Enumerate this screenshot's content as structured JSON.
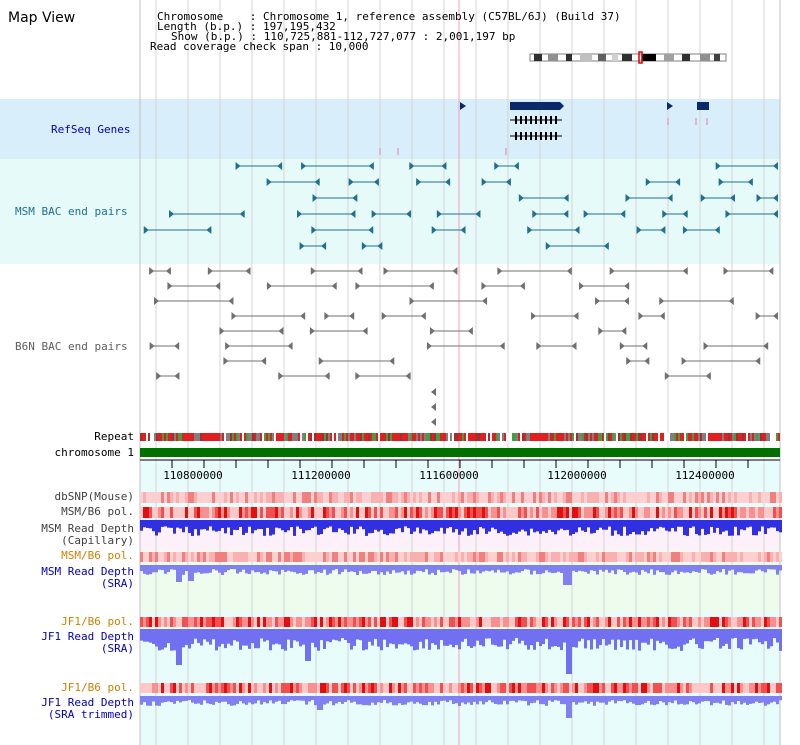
{
  "app": {
    "title": "Map View"
  },
  "info": {
    "chromosome": "Chromosome    : Chromosome 1, reference assembly (C57BL/6J) (Build 37)",
    "length": "Length (b.p.) : 197,195,432",
    "show": "Show (b.p.) : 110,725,881-112,727,077 : 2,001,197 bp",
    "span": "Read coverage check span : 10,000"
  },
  "colors": {
    "refseq_bg": "#d8eefa",
    "msm_bac_bg": "#e6fafa",
    "cyan_bg": "#e8fcfc",
    "pink_bg": "#fcf0fa",
    "green_bg": "#eefcee",
    "chromosome_bar": "#007000",
    "label_blue": "#0000c0",
    "label_teal": "#207090",
    "label_orange": "#d08000",
    "label_gray": "#606060"
  },
  "tracks": {
    "refseq": "RefSeq Genes",
    "msm_bac": "MSM BAC end pairs",
    "b6n_bac": "B6N BAC end pairs",
    "repeat": "Repeat",
    "chromosome": "chromosome 1",
    "dbsnp": "dbSNP(Mouse)",
    "msm_b6_pol": "MSM/B6 pol.",
    "msm_read_depth_cap_1": "MSM Read Depth",
    "msm_read_depth_cap_2": "(Capillary)",
    "msm_b6_pol_2": "MSM/B6 pol.",
    "msm_read_depth_sra_1": "MSM Read Depth",
    "msm_read_depth_sra_2": "(SRA)",
    "jf1_b6_pol": "JF1/B6 pol.",
    "jf1_read_depth_1": "JF1 Read Depth",
    "jf1_read_depth_2": "(SRA)",
    "jf1_b6_pol_2": "JF1/B6 pol.",
    "jf1_trim_1": "JF1 Read Depth",
    "jf1_trim_2": "(SRA trimmed)"
  },
  "axis": {
    "ticks": [
      "110800000",
      "111200000",
      "111600000",
      "112000000",
      "112400000"
    ]
  }
}
